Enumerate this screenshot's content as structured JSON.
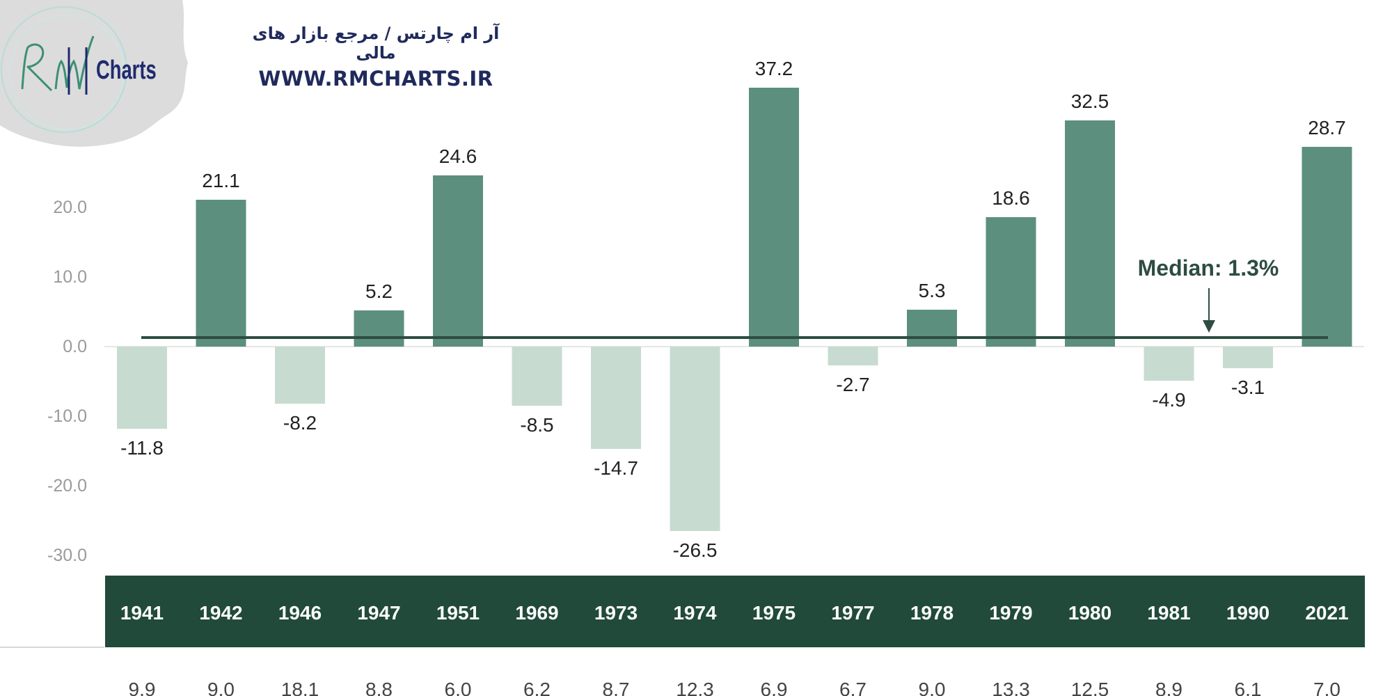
{
  "watermark": {
    "title": "آر ام چارتس / مرجع بازار های مالی",
    "url": "WWW.RMCHARTS.IR",
    "logo_text": "Charts",
    "logo_script": "RM"
  },
  "median": {
    "label": "Median: 1.3%",
    "value": 1.3
  },
  "chart_data": {
    "type": "bar",
    "title": "",
    "xlabel": "",
    "ylabel": "",
    "ylim": [
      -30,
      40
    ],
    "yticks": [
      -30,
      -20,
      -10,
      0,
      10,
      20
    ],
    "ytick_labels": [
      "-30.0",
      "-20.0",
      "-10.0",
      "0.0",
      "10.0",
      "20.0"
    ],
    "categories": [
      "1941",
      "1942",
      "1946",
      "1947",
      "1951",
      "1969",
      "1973",
      "1974",
      "1975",
      "1977",
      "1978",
      "1979",
      "1980",
      "1981",
      "1990",
      "2021"
    ],
    "values": [
      -11.8,
      21.1,
      -8.2,
      5.2,
      24.6,
      -8.5,
      -14.7,
      -26.5,
      37.2,
      -2.7,
      5.3,
      18.6,
      32.5,
      -4.9,
      -3.1,
      28.7
    ],
    "value_labels": [
      "-11.8",
      "21.1",
      "-8.2",
      "5.2",
      "24.6",
      "-8.5",
      "-14.7",
      "-26.5",
      "37.2",
      "-2.7",
      "5.3",
      "18.6",
      "32.5",
      "-4.9",
      "-3.1",
      "28.7"
    ],
    "second_row": [
      "9.9",
      "9.0",
      "18.1",
      "8.8",
      "6.0",
      "6.2",
      "8.7",
      "12.3",
      "6.9",
      "6.7",
      "9.0",
      "13.3",
      "12.5",
      "8.9",
      "6.1",
      "7.0"
    ],
    "colors": {
      "positive": "#5d8f7e",
      "negative": "#c8dbd0",
      "median_line": "#2d4d41",
      "band": "#214a3b",
      "axis_text": "#9a9a9a",
      "label_text": "#222222"
    }
  }
}
